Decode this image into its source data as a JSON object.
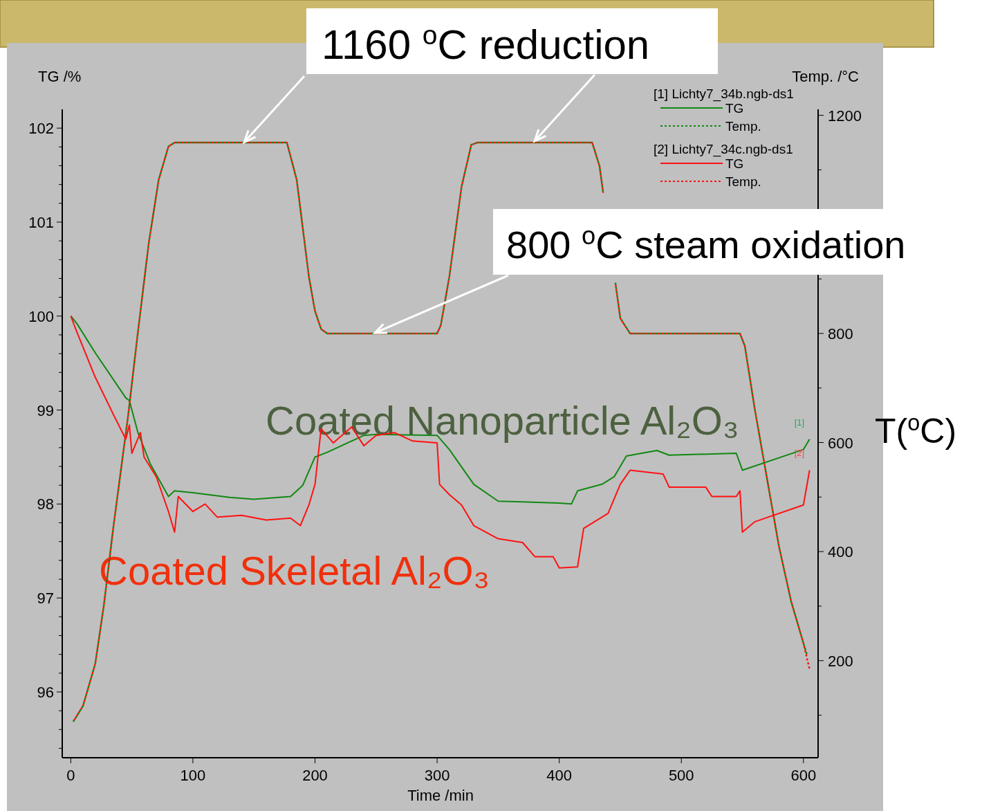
{
  "chart_data": {
    "type": "line",
    "xlabel": "Time /min",
    "ylabel": "TG /%",
    "y2label": "Temp. /°C",
    "xlim": [
      -7,
      612
    ],
    "xticks": [
      0,
      100,
      200,
      300,
      400,
      500,
      600
    ],
    "ylim": [
      95.3,
      102.2
    ],
    "yticks": [
      {
        "value": 95.4,
        "label": null
      },
      {
        "value": 95.6,
        "label": null
      },
      {
        "value": 95.8,
        "label": null
      },
      96,
      {
        "value": 96.2,
        "label": null
      },
      {
        "value": 96.4,
        "label": null
      },
      {
        "value": 96.6,
        "label": null
      },
      {
        "value": 96.8,
        "label": null
      },
      97,
      {
        "value": 97.2,
        "label": null
      },
      {
        "value": 97.4,
        "label": null
      },
      {
        "value": 97.6,
        "label": null
      },
      {
        "value": 97.8,
        "label": null
      },
      98,
      {
        "value": 98.2,
        "label": null
      },
      {
        "value": 98.4,
        "label": null
      },
      {
        "value": 98.6,
        "label": null
      },
      {
        "value": 98.8,
        "label": null
      },
      99,
      {
        "value": 99.2,
        "label": null
      },
      {
        "value": 99.4,
        "label": null
      },
      {
        "value": 99.6,
        "label": null
      },
      {
        "value": 99.8,
        "label": null
      },
      100,
      {
        "value": 100.2,
        "label": null
      },
      {
        "value": 100.4,
        "label": null
      },
      {
        "value": 100.6,
        "label": null
      },
      {
        "value": 100.8,
        "label": null
      },
      101,
      {
        "value": 101.2,
        "label": null
      },
      {
        "value": 101.4,
        "label": null
      },
      {
        "value": 101.6,
        "label": null
      },
      {
        "value": 101.8,
        "label": null
      },
      102
    ],
    "y2lim": [
      22,
      1211
    ],
    "y2ticks": [
      {
        "value": 100,
        "label": null
      },
      200,
      {
        "value": 300,
        "label": null
      },
      400,
      {
        "value": 500,
        "label": null
      },
      600,
      {
        "value": 700,
        "label": null
      },
      800,
      {
        "value": 900,
        "label": null
      },
      {
        "value": 1000,
        "label": null
      },
      {
        "value": 1100,
        "label": null
      },
      1200
    ],
    "grid": false,
    "legend": "top right",
    "marker": "none",
    "series": [
      {
        "name": "TG",
        "color": "#118811",
        "line_style": "solid",
        "x": [
          0,
          5,
          20,
          45,
          48,
          55,
          65,
          80,
          85,
          100,
          130,
          150,
          180,
          190,
          200,
          210,
          240,
          250,
          300,
          310,
          330,
          350,
          400,
          410,
          415,
          435,
          445,
          455,
          480,
          490,
          545,
          550,
          600,
          605
        ],
        "values": [
          100.0,
          99.92,
          99.61,
          99.13,
          99.1,
          98.76,
          98.43,
          98.08,
          98.14,
          98.12,
          98.07,
          98.05,
          98.08,
          98.2,
          98.5,
          98.55,
          98.73,
          98.74,
          98.73,
          98.58,
          98.21,
          98.03,
          98.01,
          98.0,
          98.14,
          98.21,
          98.29,
          98.51,
          98.57,
          98.52,
          98.54,
          98.36,
          98.58,
          98.69
        ]
      },
      {
        "name": "Temp.",
        "color": "#118811",
        "line_style": "dotted",
        "axis": "y2",
        "x": [
          2,
          10,
          20,
          27,
          35,
          47,
          55,
          64,
          72,
          80,
          85,
          177,
          185,
          195,
          200,
          205,
          210,
          300,
          303,
          310,
          320,
          328,
          333,
          427,
          433,
          436,
          440,
          446,
          450,
          458,
          548,
          552,
          560,
          570,
          580,
          590,
          600,
          603
        ],
        "values": [
          88,
          117,
          194,
          300,
          447,
          650,
          803,
          968,
          1082,
          1143,
          1150,
          1150,
          1082,
          904,
          841,
          808,
          800,
          800,
          815,
          904,
          1069,
          1146,
          1150,
          1150,
          1107,
          1058,
          null,
          893,
          828,
          800,
          800,
          777,
          663,
          536,
          409,
          308,
          232,
          210
        ]
      },
      {
        "name": "TG",
        "color": "#ff1111",
        "line_style": "solid",
        "x": [
          0,
          5,
          20,
          35,
          45,
          48,
          50,
          57,
          60,
          70,
          80,
          85,
          88,
          100,
          110,
          120,
          140,
          160,
          180,
          188,
          195,
          200,
          205,
          215,
          230,
          240,
          250,
          265,
          280,
          300,
          302,
          310,
          320,
          330,
          350,
          370,
          380,
          395,
          400,
          415,
          420,
          440,
          450,
          458,
          485,
          490,
          520,
          525,
          545,
          548,
          550,
          560,
          600,
          605
        ],
        "values": [
          100.0,
          99.83,
          99.35,
          98.95,
          98.69,
          98.84,
          98.54,
          98.76,
          98.5,
          98.29,
          97.92,
          97.7,
          98.08,
          97.92,
          98.0,
          97.86,
          97.88,
          97.83,
          97.85,
          97.77,
          97.99,
          98.21,
          98.8,
          98.65,
          98.82,
          98.62,
          98.73,
          98.76,
          98.67,
          98.65,
          98.21,
          98.1,
          97.99,
          97.77,
          97.63,
          97.59,
          97.44,
          97.44,
          97.32,
          97.33,
          97.74,
          97.9,
          98.21,
          98.36,
          98.32,
          98.18,
          98.18,
          98.08,
          98.08,
          98.14,
          97.7,
          97.81,
          97.99,
          98.36
        ]
      },
      {
        "name": "Temp.",
        "color": "#ff1111",
        "line_style": "dotted",
        "axis": "y2",
        "x": [
          2,
          10,
          20,
          27,
          35,
          47,
          55,
          64,
          72,
          80,
          85,
          177,
          185,
          195,
          200,
          205,
          210,
          300,
          303,
          310,
          320,
          328,
          333,
          427,
          433,
          436,
          440,
          446,
          450,
          458,
          548,
          552,
          560,
          570,
          580,
          590,
          600,
          605
        ],
        "values": [
          88,
          117,
          194,
          300,
          447,
          650,
          803,
          968,
          1082,
          1143,
          1150,
          1150,
          1082,
          904,
          841,
          808,
          800,
          800,
          815,
          904,
          1069,
          1146,
          1150,
          1150,
          1107,
          1058,
          null,
          893,
          828,
          800,
          800,
          777,
          663,
          536,
          409,
          308,
          232,
          184
        ]
      }
    ],
    "annotations": [
      "[1] Lichty7_34b.ngb-ds1",
      "[2] Lichty7_34c.ngb-ds1",
      "Coated Nanoparticle Al₂O₃",
      "Coated Skeletal Al₂O₃",
      "T($^{o}$C)",
      {
        "text": "1160 $^{o}$C reduction",
        "x": 142,
        "y": 101.85
      },
      {
        "text": "800 $^{o}$C steam oxidation",
        "x": 249,
        "y": 99.82
      },
      {
        "text": "[1]",
        "x": 605,
        "y": 98.69
      },
      {
        "text": "[2]",
        "x": 605,
        "y": 98.36
      }
    ]
  }
}
